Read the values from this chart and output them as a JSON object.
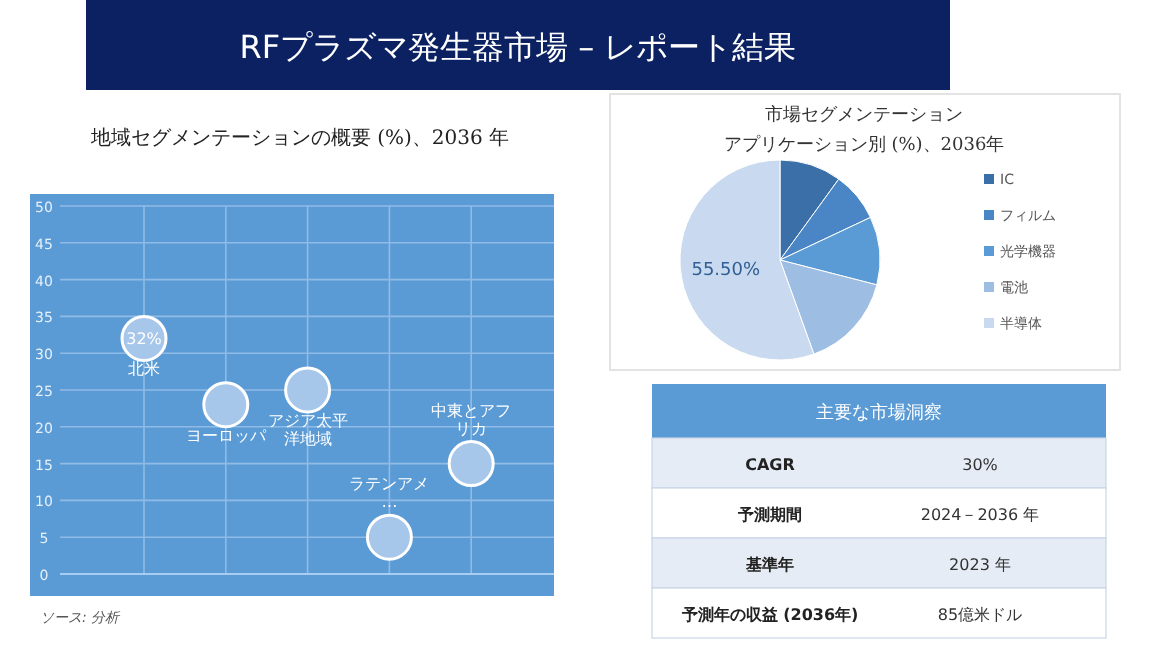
{
  "chart_data": [
    {
      "type": "bubble",
      "title": "RFプラズマ発生器市場 – レポート結果",
      "subtitle": "地域セグメンテーションの概要 (%)、2036 年",
      "categories": [
        null,
        null,
        null,
        null,
        null
      ],
      "series": [
        {
          "name": "北米",
          "color": "#a6c6ea",
          "values": [
            32,
            null,
            null,
            null,
            null
          ],
          "sizes": [
            1,
            null,
            null,
            null,
            null
          ],
          "value_labels": [
            "32%",
            null,
            null,
            null,
            null
          ]
        },
        {
          "name": "ヨーロッパ",
          "color": "#a6c6ea",
          "values": [
            null,
            23,
            null,
            null,
            null
          ],
          "sizes": [
            null,
            1,
            null,
            null,
            null
          ]
        },
        {
          "name": "アジア太平洋地域",
          "color": "#a6c6ea",
          "values": [
            null,
            null,
            25,
            null,
            null
          ],
          "sizes": [
            null,
            null,
            1,
            null,
            null
          ]
        },
        {
          "name": "ラテンアメ…",
          "color": "#a6c6ea",
          "values": [
            null,
            null,
            null,
            5,
            null
          ],
          "sizes": [
            null,
            null,
            null,
            1,
            null
          ]
        },
        {
          "name": "中東とアフリカ",
          "color": "#a6c6ea",
          "values": [
            null,
            null,
            null,
            null,
            15
          ],
          "sizes": [
            null,
            null,
            null,
            null,
            1
          ]
        }
      ],
      "ylim": [
        0,
        50
      ],
      "yticks": [
        0,
        5,
        10,
        15,
        20,
        25,
        30,
        35,
        40,
        45,
        50
      ],
      "grid": true,
      "annotations": [
        "ソース: 分析"
      ]
    },
    {
      "type": "pie",
      "title": "市場セグメンテーション",
      "subtitle": "アプリケーション別 (%)、2036年",
      "categories": [
        "IC",
        "フィルム",
        "光学機器",
        "電池",
        "半導体"
      ],
      "values": [
        10,
        8,
        11,
        15.5,
        55.5
      ],
      "colors": [
        "#3a6fa8",
        "#4a86c5",
        "#5b9bd5",
        "#9dbde3",
        "#c9daf0"
      ],
      "value_labels": [
        null,
        null,
        null,
        null,
        "55.50%"
      ],
      "legend": "right"
    },
    {
      "type": "other",
      "title": "主要な市場洞察",
      "annotations": [
        "CAGR",
        "30%",
        "予測期間",
        "2024－2036 年",
        "基準年",
        "2023 年",
        "予測年の収益 (2036年)",
        "85億米ドル"
      ]
    }
  ]
}
